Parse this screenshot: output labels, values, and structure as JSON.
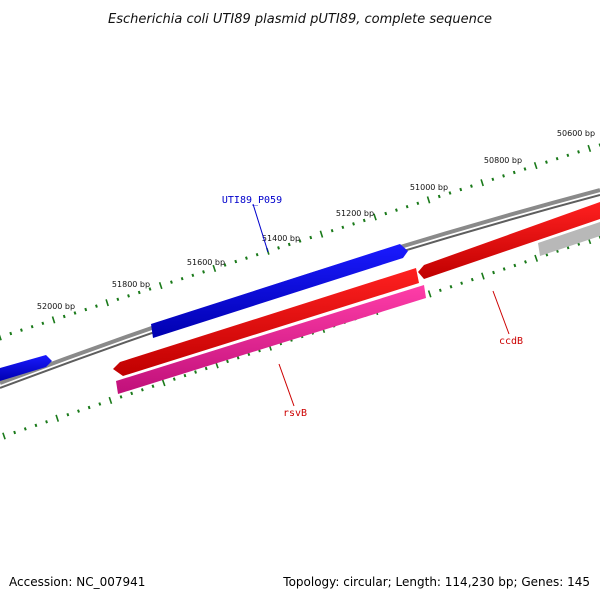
{
  "title": "Escherichia coli UTI89 plasmid pUTI89, complete sequence",
  "footer": {
    "accession": "Accession: NC_007941",
    "summary": "Topology: circular; Length: 114,230 bp; Genes: 145"
  },
  "ruler": {
    "labels": [
      "50600 bp",
      "50800 bp",
      "51000 bp",
      "51200 bp",
      "51400 bp",
      "51600 bp",
      "51800 bp",
      "52000 bp"
    ]
  },
  "genes": [
    {
      "id": "utib9-p059",
      "label": "UTI89_P059",
      "color": "#0000ee"
    },
    {
      "id": "ccdb",
      "label": "ccdB",
      "color": "#ee0000"
    },
    {
      "id": "rsvb",
      "label": "rsvB",
      "color": "#ee0000"
    }
  ],
  "colors": {
    "backbone": "#777777",
    "ticks": "#1a7a1a",
    "forward_gene": "#0000ee",
    "reverse_gene": "#ee0000",
    "rsvb_gene": "#ee1493",
    "other_gene": "#b0b0b0"
  }
}
